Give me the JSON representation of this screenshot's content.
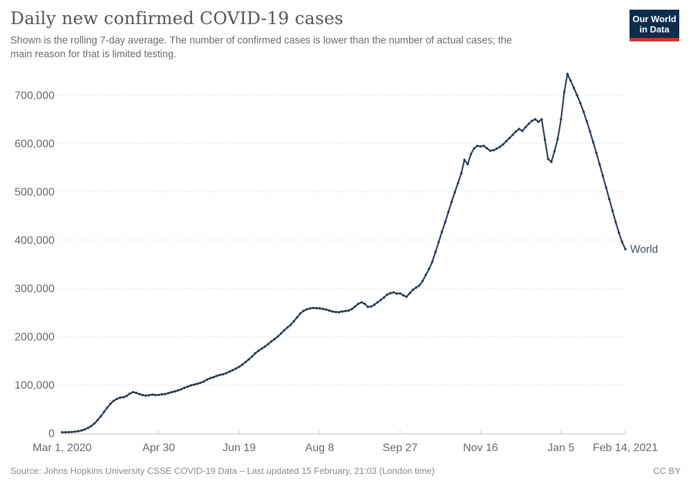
{
  "header": {
    "title": "Daily new confirmed COVID-19 cases",
    "subtitle_line1": "Shown is the rolling 7-day average. The number of confirmed cases is lower than the number of actual cases; the",
    "subtitle_line2": "main reason for that is limited testing.",
    "logo": {
      "line1": "Our World",
      "line2": "in Data",
      "bg_color": "#0c2d4e",
      "bar_color": "#d7331f"
    }
  },
  "footer": {
    "source": "Source: Johns Hopkins University CSSE COVID-19 Data – Last updated 15 February, 21:03 (London time)",
    "license": "CC BY"
  },
  "chart_data": {
    "type": "line",
    "title": "Daily new confirmed COVID-19 cases",
    "ylabel": "",
    "xlabel": "",
    "grid": true,
    "ylim": [
      0,
      744000
    ],
    "x_range_days": 350,
    "x_ticks": [
      {
        "label": "Mar 1, 2020",
        "day": 0
      },
      {
        "label": "Apr 30",
        "day": 60
      },
      {
        "label": "Jun 19",
        "day": 110
      },
      {
        "label": "Aug 8",
        "day": 160
      },
      {
        "label": "Sep 27",
        "day": 210
      },
      {
        "label": "Nov 16",
        "day": 260
      },
      {
        "label": "Jan 5",
        "day": 310
      },
      {
        "label": "Feb 14, 2021",
        "day": 350
      }
    ],
    "y_ticks": [
      {
        "label": "0",
        "value": 0
      },
      {
        "label": "100,000",
        "value": 100000
      },
      {
        "label": "200,000",
        "value": 200000
      },
      {
        "label": "300,000",
        "value": 300000
      },
      {
        "label": "400,000",
        "value": 400000
      },
      {
        "label": "500,000",
        "value": 500000
      },
      {
        "label": "600,000",
        "value": 600000
      },
      {
        "label": "700,000",
        "value": 700000
      }
    ],
    "end_label": "World",
    "series": [
      {
        "name": "World",
        "color": "#2b3d54",
        "dot_color": "#24364c",
        "label_color": "#3d4e66",
        "x_start": "Mar 1, 2020",
        "x_end": "Feb 14, 2021",
        "x_step_days": 2,
        "values": [
          1800,
          2000,
          2200,
          2600,
          3200,
          4200,
          5600,
          7800,
          10800,
          14800,
          20000,
          27000,
          35000,
          44000,
          53000,
          61000,
          67000,
          71000,
          73500,
          74500,
          77000,
          82000,
          85000,
          83500,
          81000,
          79000,
          78000,
          78500,
          80000,
          79000,
          79500,
          80500,
          81000,
          83000,
          85000,
          86500,
          88500,
          91000,
          94000,
          96500,
          99000,
          100500,
          102500,
          104500,
          107000,
          111000,
          114000,
          116000,
          118500,
          120500,
          122000,
          124500,
          127500,
          130500,
          134000,
          137500,
          142000,
          147500,
          153000,
          159000,
          165500,
          170500,
          175000,
          179500,
          184500,
          190000,
          195000,
          200000,
          206500,
          213000,
          219000,
          224500,
          232000,
          240000,
          248000,
          253500,
          256500,
          258500,
          259500,
          259000,
          258500,
          257500,
          256000,
          254000,
          252000,
          251000,
          250500,
          252000,
          253000,
          254000,
          257000,
          262500,
          268000,
          271000,
          268000,
          261500,
          262500,
          266000,
          271000,
          276000,
          281000,
          287000,
          290000,
          291500,
          289000,
          289500,
          285500,
          282500,
          290000,
          297000,
          301500,
          306000,
          315000,
          328000,
          340000,
          355000,
          375000,
          396000,
          417000,
          437000,
          458000,
          479000,
          499000,
          518000,
          538000,
          566000,
          557000,
          578000,
          590000,
          595000,
          594000,
          595000,
          590000,
          585000,
          586000,
          589000,
          593000,
          598000,
          605000,
          611000,
          618000,
          625000,
          630000,
          626000,
          634000,
          641000,
          647000,
          650000,
          645000,
          650000,
          608000,
          568000,
          562000,
          584000,
          610000,
          650000,
          706000,
          744000,
          730000,
          715000,
          700000,
          684000,
          666000,
          646000,
          625000,
          603000,
          580000,
          557000,
          533000,
          509000,
          485000,
          461000,
          437000,
          415000,
          396000,
          381000
        ]
      }
    ]
  }
}
